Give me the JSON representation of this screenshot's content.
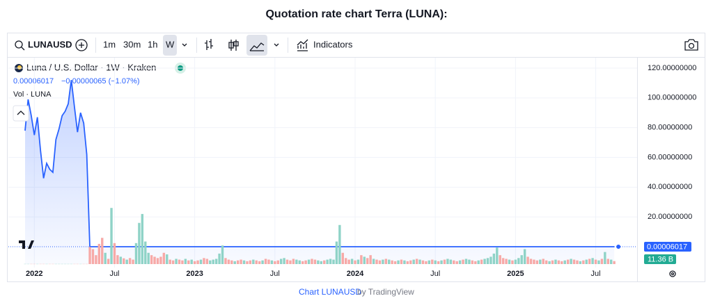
{
  "page_title": "Quotation rate chart Terra (LUNA):",
  "toolbar": {
    "symbol": "LUNAUSD",
    "intervals": [
      "1m",
      "30m",
      "1h",
      "W"
    ],
    "indicators": "Indicators"
  },
  "footer": {
    "link": "Chart LUNAUSD",
    "by": "by TradingView"
  },
  "chart_data": {
    "type": "line",
    "area": true,
    "legend": {
      "symbol_line": "Luna / U.S. Dollar · 1W · Kraken",
      "last": "0.00006017",
      "change": "−0.00000065 (−1.07%)",
      "volume": "Vol · LUNA",
      "volume_last": "11.36 B"
    },
    "categories": [
      null,
      null,
      null,
      "2022",
      null,
      null,
      null,
      null,
      null,
      null,
      null,
      null,
      null,
      null,
      null,
      null,
      null,
      null,
      null,
      null,
      null,
      null,
      null,
      null,
      null,
      null,
      null,
      null,
      null,
      "Jul",
      null,
      null,
      null,
      null,
      null,
      null,
      null,
      null,
      null,
      null,
      null,
      null,
      null,
      null,
      null,
      null,
      null,
      null,
      null,
      null,
      null,
      null,
      null,
      null,
      null,
      "2023",
      null,
      null,
      null,
      null,
      null,
      null,
      null,
      null,
      null,
      null,
      null,
      null,
      null,
      null,
      null,
      null,
      null,
      null,
      null,
      null,
      null,
      null,
      null,
      null,
      null,
      "Jul",
      null,
      null,
      null,
      null,
      null,
      null,
      null,
      null,
      null,
      null,
      null,
      null,
      null,
      null,
      null,
      null,
      null,
      null,
      null,
      null,
      null,
      null,
      null,
      null,
      null,
      "2024",
      null,
      null,
      null,
      null,
      null,
      null,
      null,
      null,
      null,
      null,
      null,
      null,
      null,
      null,
      null,
      null,
      null,
      null,
      null,
      null,
      null,
      null,
      null,
      null,
      null,
      "Jul",
      null,
      null,
      null,
      null,
      null,
      null,
      null,
      null,
      null,
      null,
      null,
      null,
      null,
      null,
      null,
      null,
      null,
      null,
      null,
      null,
      null,
      null,
      null,
      null,
      null,
      "2025",
      null,
      null,
      null,
      null,
      null,
      null,
      null,
      null,
      null,
      null,
      null,
      null,
      null,
      null,
      null,
      null,
      null,
      null,
      null,
      null,
      null,
      null,
      null,
      null,
      null,
      "Jul",
      null,
      null,
      null,
      null,
      null,
      null
    ],
    "series": [
      {
        "name": "Luna / U.S. Dollar",
        "color": "#2962ff",
        "values": [
          78,
          99,
          88,
          75,
          87,
          65,
          46,
          56,
          52,
          50,
          72,
          79,
          88,
          91,
          96,
          112,
          94,
          77,
          90,
          83,
          62,
          0.0003,
          0.00025,
          0.00021,
          0.00018,
          0.00016,
          0.00017,
          0.00015,
          0.00022,
          0.0002,
          0.00018,
          0.00019,
          0.00017,
          0.00018,
          0.00016,
          0.00015,
          0.00024,
          0.00033,
          0.00036,
          0.0004,
          0.00041,
          0.00035,
          0.00031,
          0.00028,
          0.00025,
          0.00022,
          0.00023,
          0.00021,
          0.0002,
          0.00021,
          0.00019,
          0.00018,
          0.00019,
          0.00017,
          0.00018,
          0.00016,
          0.00015,
          0.00016,
          0.00014,
          0.00013,
          0.00014,
          0.00015,
          0.00016,
          0.00018,
          0.00021,
          0.00019,
          0.00017,
          0.00016,
          0.00017,
          0.00015,
          0.00014,
          0.00015,
          0.00013,
          0.00012,
          0.00013,
          0.00012,
          0.00011,
          0.00012,
          0.00011,
          0.0001,
          0.00011,
          0.0001,
          9e-05,
          0.0001,
          0.00011,
          0.0001,
          9e-05,
          8e-05,
          9e-05,
          0.0001,
          9e-05,
          8e-05,
          9e-05,
          8e-05,
          7e-05,
          8e-05,
          9e-05,
          8e-05,
          9e-05,
          0.0001,
          0.00011,
          0.00013,
          0.00016,
          0.00015,
          0.00014,
          0.00013,
          0.00014,
          0.00012,
          0.00013,
          0.00011,
          0.00012,
          0.00011,
          0.0001,
          0.00011,
          0.0001,
          9e-05,
          0.0001,
          9e-05,
          0.0001,
          9e-05,
          8e-05,
          9e-05,
          8e-05,
          9e-05,
          8e-05,
          7e-05,
          8e-05,
          7e-05,
          8e-05,
          7e-05,
          6e-05,
          7e-05,
          6e-05,
          7e-05,
          6e-05,
          7e-05,
          6e-05,
          7e-05,
          8e-05,
          7e-05,
          6e-05,
          7e-05,
          6e-05,
          7e-05,
          8e-05,
          7e-05,
          6e-05,
          7e-05,
          6e-05,
          7e-05,
          8e-05,
          9e-05,
          0.0001,
          0.00012,
          0.00011,
          0.0001,
          9e-05,
          0.0001,
          9e-05,
          0.0001,
          0.00011,
          0.00012,
          0.00013,
          0.00012,
          0.00011,
          0.0001,
          9e-05,
          0.0001,
          9e-05,
          8e-05,
          9e-05,
          8e-05,
          9e-05,
          8e-05,
          7e-05,
          8e-05,
          7e-05,
          8e-05,
          7e-05,
          6e-05,
          7e-05,
          6e-05,
          7e-05,
          6e-05,
          7e-05,
          6e-05,
          7e-05,
          6e-05,
          7e-05,
          6e-05,
          6.082e-05,
          6.017e-05
        ]
      },
      {
        "name": "Vol · LUNA",
        "type": "bar",
        "axis": "y2",
        "up_color": "#8fd3c7",
        "down_color": "#f7a9a7",
        "values": [
          0.5,
          0.5,
          0.5,
          0.5,
          0.5,
          0.5,
          0.5,
          0.5,
          0.5,
          0.5,
          0.5,
          0.5,
          0.5,
          0.5,
          0.5,
          0.5,
          0.5,
          0.5,
          0.5,
          0.5,
          0.5,
          65,
          57,
          34,
          77,
          100,
          43,
          20,
          214,
          80,
          34,
          28,
          22,
          17,
          23,
          17,
          80,
          157,
          191,
          86,
          43,
          34,
          28,
          23,
          28,
          43,
          37,
          17,
          14,
          20,
          17,
          14,
          20,
          14,
          17,
          11,
          14,
          17,
          23,
          20,
          14,
          17,
          20,
          40,
          71,
          23,
          17,
          14,
          11,
          14,
          17,
          14,
          11,
          14,
          17,
          14,
          11,
          14,
          20,
          17,
          14,
          11,
          14,
          20,
          23,
          17,
          14,
          20,
          17,
          14,
          11,
          14,
          17,
          20,
          17,
          14,
          11,
          14,
          17,
          20,
          17,
          86,
          149,
          43,
          23,
          17,
          20,
          14,
          17,
          34,
          28,
          23,
          34,
          20,
          17,
          14,
          17,
          20,
          17,
          14,
          11,
          14,
          17,
          14,
          11,
          14,
          17,
          20,
          17,
          14,
          11,
          14,
          17,
          14,
          11,
          14,
          17,
          20,
          17,
          14,
          11,
          14,
          17,
          20,
          17,
          14,
          11,
          14,
          17,
          20,
          23,
          28,
          40,
          63,
          34,
          23,
          20,
          17,
          14,
          17,
          23,
          34,
          57,
          28,
          20,
          17,
          14,
          17,
          20,
          14,
          11,
          14,
          17,
          14,
          11,
          14,
          17,
          20,
          17,
          14,
          11,
          14,
          17,
          20,
          23,
          17,
          14,
          20,
          46,
          20,
          17,
          11.36
        ]
      }
    ],
    "ylim": [
      -14,
      127
    ],
    "yticks": [
      {
        "value": 20,
        "label": "20.00000000"
      },
      {
        "value": 40,
        "label": "40.00000000"
      },
      {
        "value": 60,
        "label": "60.00000000"
      },
      {
        "value": 80,
        "label": "80.00000000"
      },
      {
        "value": 100,
        "label": "100.00000000"
      },
      {
        "value": 120,
        "label": "120.00000000"
      }
    ],
    "y2lim": [
      0,
      800
    ],
    "grid": true
  }
}
